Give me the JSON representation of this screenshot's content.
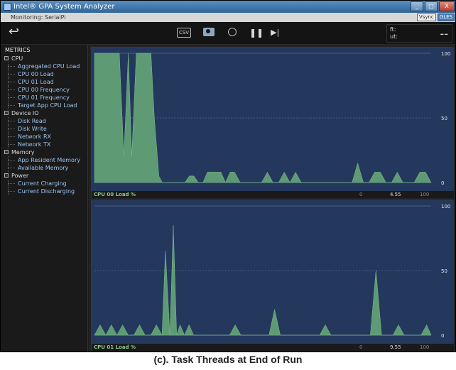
{
  "window": {
    "title": "Intel® GPA System Analyzer",
    "buttons": [
      "_",
      "□",
      "X"
    ]
  },
  "monitoring": {
    "label": "Monitoring: SerialPi",
    "badges": [
      "Vsync",
      "GLES"
    ]
  },
  "toolbar": {
    "back_icon": "↩",
    "csv_label": "CSV",
    "pause_icon": "❚❚",
    "step_icon": "▶|"
  },
  "hud": {
    "line1": "ft:",
    "line2": "ut:",
    "value": "--"
  },
  "sidebar": {
    "title": "METRICS",
    "categories": [
      {
        "label": "CPU",
        "items": [
          "Aggregated CPU Load",
          "CPU 00 Load",
          "CPU 01 Load",
          "CPU 00 Frequency",
          "CPU 01 Frequency",
          "Target App CPU Load"
        ]
      },
      {
        "label": "Device IO",
        "items": [
          "Disk Read",
          "Disk Write",
          "Network RX",
          "Network TX"
        ]
      },
      {
        "label": "Memory",
        "items": [
          "App Resident Memory",
          "Available Memory"
        ]
      },
      {
        "label": "Power",
        "items": [
          "Current Charging",
          "Current Discharging"
        ]
      }
    ]
  },
  "charts": [
    {
      "label": "CPU 00 Load %",
      "min": "0",
      "current": "4.55",
      "max": "100",
      "axis": {
        "top": "100",
        "mid": "50",
        "bottom": "0"
      }
    },
    {
      "label": "CPU 01 Load %",
      "min": "0",
      "current": "9.55",
      "max": "100",
      "axis": {
        "top": "100",
        "mid": "50",
        "bottom": "0"
      }
    }
  ],
  "chart_data": [
    {
      "type": "area",
      "title": "CPU 00 Load %",
      "ylim": [
        0,
        100
      ],
      "fill_color": "#5e9a73",
      "x": [
        0,
        0.8,
        1.5,
        2.2,
        2.6,
        3.0,
        3.3,
        3.7,
        4.1,
        4.6,
        5.0,
        5.3,
        5.7,
        6.0,
        6.5,
        7.0,
        7.5,
        8.0,
        8.4,
        8.8,
        9.2,
        9.6,
        10.0,
        10.4,
        10.8,
        11.2,
        11.6,
        12.0,
        12.4,
        12.9,
        13.4,
        13.9,
        14.3,
        14.8,
        15.3,
        15.8,
        16.3,
        16.8,
        17.3,
        17.8,
        18.3,
        18.8,
        19.3,
        19.8,
        20.3,
        20.8,
        21.3,
        21.8,
        22.3,
        22.8,
        23.3,
        23.8,
        24.3,
        24.8,
        25.3,
        25.8,
        26.3,
        26.8,
        27.3,
        27.8,
        28.3,
        28.8,
        29.3,
        29.8
      ],
      "values": [
        100,
        100,
        100,
        100,
        20,
        100,
        20,
        100,
        100,
        100,
        100,
        50,
        5,
        0,
        0,
        0,
        0,
        0,
        5,
        5,
        0,
        0,
        8,
        8,
        8,
        8,
        0,
        8,
        8,
        0,
        0,
        0,
        0,
        0,
        8,
        0,
        0,
        8,
        0,
        8,
        0,
        0,
        0,
        0,
        0,
        0,
        0,
        0,
        0,
        0,
        15,
        0,
        0,
        8,
        8,
        0,
        0,
        8,
        0,
        0,
        0,
        8,
        8,
        0
      ]
    },
    {
      "type": "area",
      "title": "CPU 01 Load %",
      "ylim": [
        0,
        100
      ],
      "fill_color": "#5e9a73",
      "x": [
        0,
        0.5,
        1.0,
        1.5,
        2.0,
        2.5,
        3.0,
        3.5,
        4.0,
        4.5,
        5.0,
        5.5,
        6.0,
        6.3,
        6.7,
        7.0,
        7.3,
        7.6,
        8.0,
        8.4,
        8.8,
        9.2,
        9.6,
        10.0,
        10.5,
        11.0,
        11.5,
        12.0,
        12.5,
        13.0,
        13.5,
        14.0,
        14.5,
        15.0,
        15.5,
        16.0,
        16.5,
        17.0,
        17.5,
        18.0,
        18.5,
        19.0,
        19.5,
        20.0,
        20.5,
        21.0,
        21.5,
        22.0,
        22.5,
        23.0,
        23.5,
        24.0,
        24.5,
        25.0,
        25.5,
        26.0,
        26.5,
        27.0,
        27.5,
        28.0,
        28.5,
        29.0,
        29.5,
        29.9
      ],
      "values": [
        0,
        8,
        0,
        8,
        0,
        8,
        0,
        0,
        8,
        0,
        0,
        8,
        0,
        65,
        0,
        85,
        0,
        8,
        0,
        8,
        0,
        0,
        0,
        0,
        0,
        0,
        0,
        0,
        8,
        0,
        0,
        0,
        0,
        0,
        0,
        20,
        0,
        0,
        0,
        0,
        0,
        0,
        0,
        0,
        8,
        0,
        0,
        0,
        0,
        0,
        0,
        0,
        0,
        50,
        0,
        0,
        0,
        8,
        0,
        0,
        0,
        0,
        8,
        0
      ]
    }
  ],
  "caption": "(c). Task Threads at End of Run"
}
